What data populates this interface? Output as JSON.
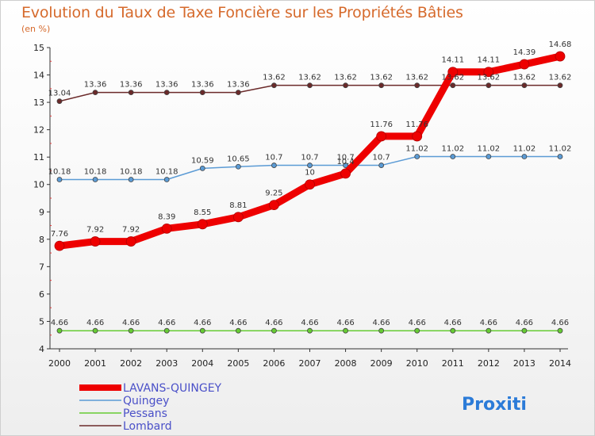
{
  "chart_data": {
    "type": "line",
    "title": "Evolution du Taux de Taxe Foncière sur les Propriétés Bâties",
    "subtitle": "(en %)",
    "x": [
      "2000",
      "2001",
      "2002",
      "2003",
      "2004",
      "2005",
      "2006",
      "2007",
      "2008",
      "2009",
      "2010",
      "2011",
      "2012",
      "2013",
      "2014"
    ],
    "y_ticks": [
      "4",
      "5",
      "6",
      "7",
      "8",
      "9",
      "10",
      "11",
      "12",
      "13",
      "14",
      "15"
    ],
    "ylim": [
      4,
      15
    ],
    "grid": false,
    "legend_position": "bottom-left",
    "series": [
      {
        "name": "LAVANS-QUINGEY",
        "color": "#ee0000",
        "values": [
          7.76,
          7.92,
          7.92,
          8.39,
          8.55,
          8.81,
          9.25,
          10,
          10.4,
          11.76,
          11.76,
          14.11,
          14.11,
          14.39,
          14.68
        ],
        "labels": [
          "7.76",
          "7.92",
          "7.92",
          "8.39",
          "8.55",
          "8.81",
          "9.25",
          "10",
          "10.4",
          "11.76",
          "11.76",
          "14.11",
          "14.11",
          "14.39",
          "14.68"
        ]
      },
      {
        "name": "Quingey",
        "color": "#5b9bd5",
        "values": [
          10.18,
          10.18,
          10.18,
          10.18,
          10.59,
          10.65,
          10.7,
          10.7,
          10.7,
          10.7,
          11.02,
          11.02,
          11.02,
          11.02,
          11.02
        ],
        "labels": [
          "10.18",
          "10.18",
          "10.18",
          "10.18",
          "10.59",
          "10.65",
          "10.7",
          "10.7",
          "10.7",
          "10.7",
          "11.02",
          "11.02",
          "11.02",
          "11.02",
          "11.02"
        ]
      },
      {
        "name": "Pessans",
        "color": "#66cc33",
        "values": [
          4.66,
          4.66,
          4.66,
          4.66,
          4.66,
          4.66,
          4.66,
          4.66,
          4.66,
          4.66,
          4.66,
          4.66,
          4.66,
          4.66,
          4.66
        ],
        "labels": [
          "4.66",
          "4.66",
          "4.66",
          "4.66",
          "4.66",
          "4.66",
          "4.66",
          "4.66",
          "4.66",
          "4.66",
          "4.66",
          "4.66",
          "4.66",
          "4.66",
          "4.66"
        ]
      },
      {
        "name": "Lombard",
        "color": "#6b2a2a",
        "values": [
          13.04,
          13.36,
          13.36,
          13.36,
          13.36,
          13.36,
          13.62,
          13.62,
          13.62,
          13.62,
          13.62,
          13.62,
          13.62,
          13.62,
          13.62
        ],
        "labels": [
          "13.04",
          "13.36",
          "13.36",
          "13.36",
          "13.36",
          "13.36",
          "13.62",
          "13.62",
          "13.62",
          "13.62",
          "13.62",
          "13.62",
          "13.62",
          "13.62",
          "13.62"
        ]
      }
    ]
  },
  "logo": {
    "text": "Proxiti"
  }
}
